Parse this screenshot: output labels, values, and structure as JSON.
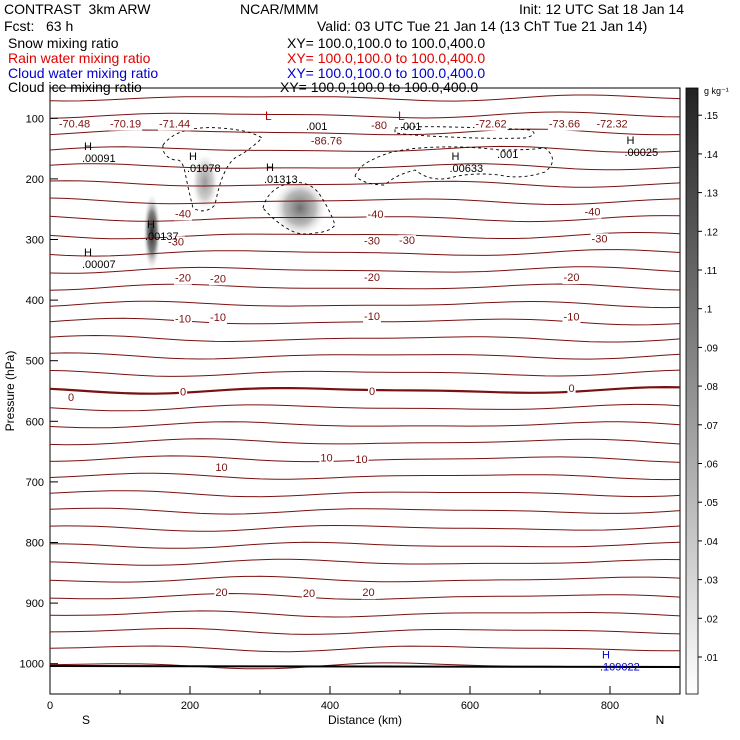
{
  "header": {
    "model": "CONTRAST  3km ARW",
    "org": "NCAR/MMM",
    "init": "Init: 12 UTC Sat 18 Jan 14",
    "fcst": "Fcst:   63 h",
    "valid": "Valid: 03 UTC Tue 21 Jan 14 (13 ChT Tue 21 Jan 14)"
  },
  "fields": [
    {
      "name": "Snow mixing ratio",
      "xy": "XY= 100.0,100.0 to 100.0,400.0",
      "color": "#000000"
    },
    {
      "name": "Rain water mixing ratio",
      "xy": "XY= 100.0,100.0 to 100.0,400.0",
      "color": "#e00000"
    },
    {
      "name": "Cloud water mixing ratio",
      "xy": "XY= 100.0,100.0 to 100.0,400.0",
      "color": "#0000cc"
    },
    {
      "name": "Cloud ice mixing ratio",
      "xy": "XY= 100.0,100.0 to 100.0,400.0",
      "color": "#000000"
    }
  ],
  "chart_data": {
    "type": "contour",
    "xlabel": "Distance (km)",
    "ylabel": "Pressure (hPa)",
    "xlim": [
      0,
      900
    ],
    "ylim": [
      1050,
      50
    ],
    "xticks": [
      0,
      200,
      400,
      600,
      800
    ],
    "yticks": [
      100,
      200,
      300,
      400,
      500,
      600,
      700,
      800,
      900,
      1000
    ],
    "x_end_labels": [
      "S",
      "N"
    ],
    "colorbar": {
      "unit": "g kg⁻¹",
      "levels": [
        ".01",
        ".02",
        ".03",
        ".04",
        ".05",
        ".06",
        ".07",
        ".08",
        ".09",
        ".1",
        ".11",
        ".12",
        ".13",
        ".14",
        ".15"
      ]
    },
    "temperature_levels": [
      {
        "x": 30,
        "p": 560,
        "label": "0"
      },
      {
        "x": 190,
        "p": 551,
        "label": "0"
      },
      {
        "x": 460,
        "p": 550,
        "label": "0"
      },
      {
        "x": 745,
        "p": 545,
        "label": "0"
      },
      {
        "x": 190,
        "p": 430,
        "label": "-10"
      },
      {
        "x": 240,
        "p": 428,
        "label": "-10"
      },
      {
        "x": 460,
        "p": 426,
        "label": "-10"
      },
      {
        "x": 745,
        "p": 427,
        "label": "-10"
      },
      {
        "x": 190,
        "p": 363,
        "label": "-20"
      },
      {
        "x": 240,
        "p": 364,
        "label": "-20"
      },
      {
        "x": 460,
        "p": 362,
        "label": "-20"
      },
      {
        "x": 745,
        "p": 362,
        "label": "-20"
      },
      {
        "x": 180,
        "p": 303,
        "label": "-30"
      },
      {
        "x": 460,
        "p": 302,
        "label": "-30"
      },
      {
        "x": 510,
        "p": 301,
        "label": "-30"
      },
      {
        "x": 785,
        "p": 298,
        "label": "-30"
      },
      {
        "x": 190,
        "p": 257,
        "label": "-40"
      },
      {
        "x": 465,
        "p": 258,
        "label": "-40"
      },
      {
        "x": 775,
        "p": 254,
        "label": "-40"
      },
      {
        "x": 470,
        "p": 111,
        "label": "-80"
      },
      {
        "x": 395,
        "p": 660,
        "label": "10"
      },
      {
        "x": 445,
        "p": 662,
        "label": "10"
      },
      {
        "x": 245,
        "p": 675,
        "label": "10"
      },
      {
        "x": 245,
        "p": 882,
        "label": "20"
      },
      {
        "x": 370,
        "p": 883,
        "label": "20"
      },
      {
        "x": 455,
        "p": 882,
        "label": "20"
      }
    ],
    "extrema": [
      {
        "x": 60,
        "p": 139,
        "mark": "H",
        "value": "00091",
        "color": "#000000"
      },
      {
        "x": 210,
        "p": 156,
        "mark": "H",
        "value": "01078",
        "color": "#000000"
      },
      {
        "x": 320,
        "p": 174,
        "mark": "H",
        "value": "01313",
        "color": "#000000"
      },
      {
        "x": 150,
        "p": 268,
        "mark": "H",
        "value": "00137",
        "color": "#000000"
      },
      {
        "x": 60,
        "p": 314,
        "mark": "H",
        "value": "00007",
        "color": "#000000"
      },
      {
        "x": 585,
        "p": 156,
        "mark": "H",
        "value": "00633",
        "color": "#000000"
      },
      {
        "x": 835,
        "p": 129,
        "mark": "H",
        "value": "00025",
        "color": "#000000"
      },
      {
        "x": 800,
        "p": 978,
        "mark": "H",
        "value": "109022",
        "color": "#0000cc"
      }
    ],
    "top_values": [
      {
        "x": 35,
        "p": 84,
        "label": "-70.48"
      },
      {
        "x": 108,
        "p": 84,
        "label": "-70.19"
      },
      {
        "x": 178,
        "p": 84,
        "label": "-71.44"
      },
      {
        "x": 395,
        "p": 112,
        "label": "-86.76"
      },
      {
        "x": 630,
        "p": 84,
        "label": "-72.62"
      },
      {
        "x": 735,
        "p": 84,
        "label": "-73.66"
      },
      {
        "x": 803,
        "p": 84,
        "label": "-72.32"
      }
    ],
    "cloud_labels": [
      ".001",
      ".001",
      ".001"
    ],
    "low_marks": [
      "L",
      "L"
    ]
  }
}
